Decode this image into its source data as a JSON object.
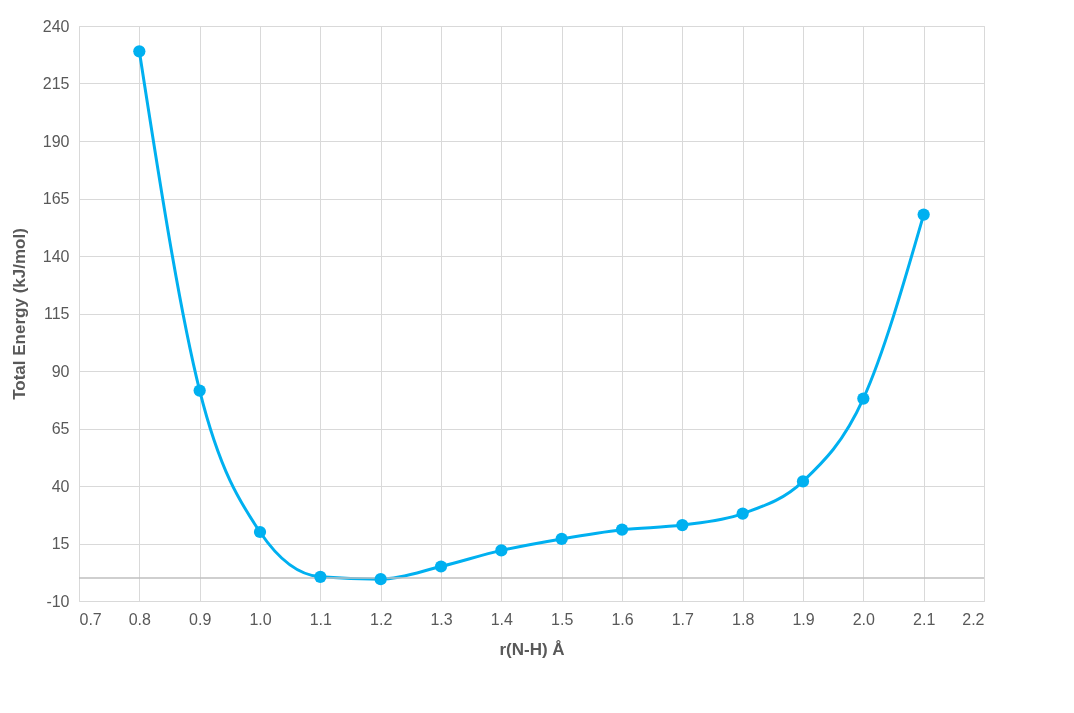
{
  "chart_data": {
    "type": "line",
    "xlabel": "r(N-H) Å",
    "ylabel": "Total Energy (kJ/mol)",
    "x": [
      0.8,
      0.9,
      1.0,
      1.1,
      1.2,
      1.3,
      1.4,
      1.5,
      1.6,
      1.7,
      1.8,
      1.9,
      2.0,
      2.1
    ],
    "series": [
      {
        "color": "#00b0f0",
        "values": [
          229,
          81.5,
          20,
          0.5,
          -0.5,
          5,
          12,
          17,
          21,
          23,
          28,
          42,
          78,
          158
        ]
      }
    ],
    "xlim": [
      0.7,
      2.2
    ],
    "xticks": [
      0.7,
      0.8,
      0.9,
      {
        "value": 1,
        "label": "1.0"
      },
      1.1,
      1.2,
      1.3,
      1.4,
      1.5,
      1.6,
      1.7,
      1.8,
      1.9,
      {
        "value": 2,
        "label": "2.0"
      },
      2.1,
      2.2
    ],
    "ylim": [
      -10,
      240
    ],
    "yticks": [
      -10,
      15,
      40,
      65,
      90,
      115,
      140,
      165,
      190,
      215,
      240
    ],
    "ref_lines": [
      {
        "axis": "y",
        "value": 0,
        "color": "#bfbfbf"
      }
    ],
    "grid": true,
    "marker": "circle",
    "line_style": "solid"
  }
}
